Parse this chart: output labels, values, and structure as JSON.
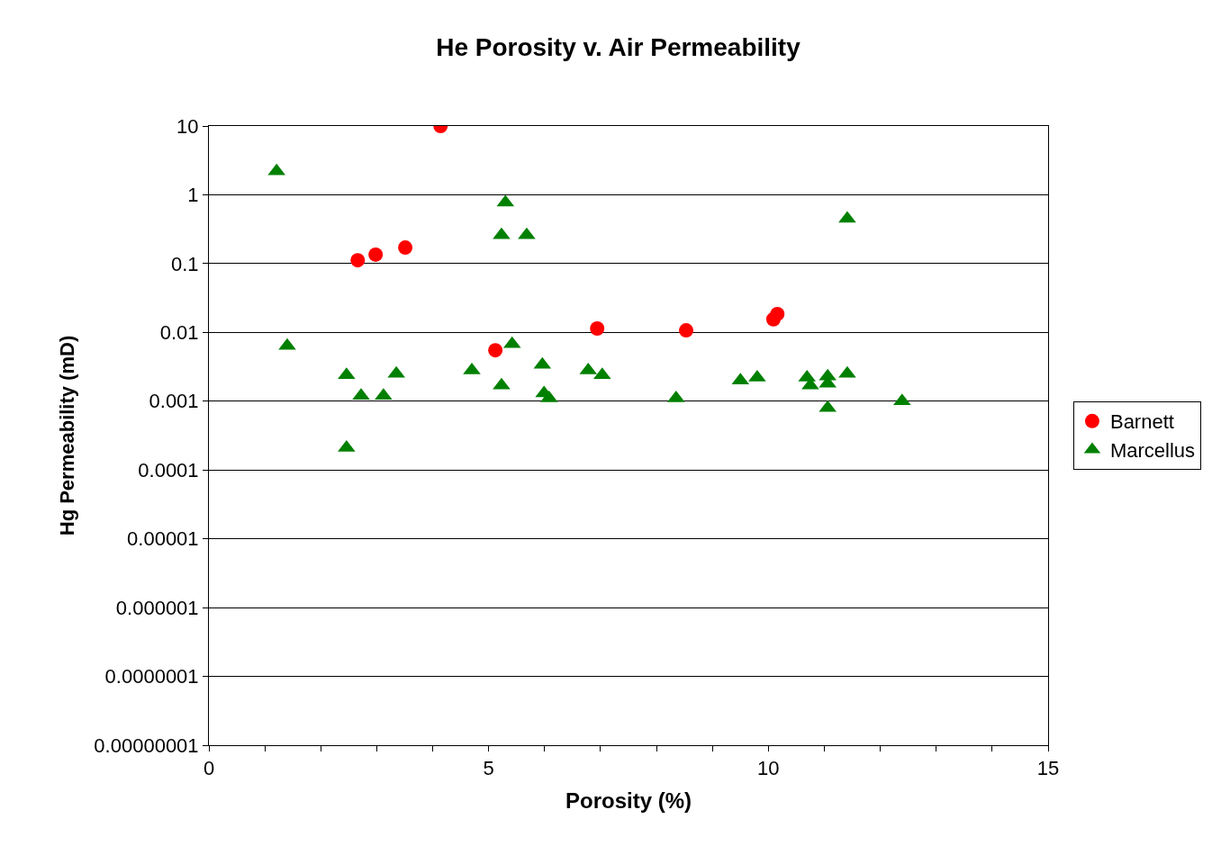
{
  "chart_data": {
    "type": "scatter",
    "title": "He Porosity v. Air Permeability",
    "xlabel": "Porosity (%)",
    "ylabel": "Hg Permeability (mD)",
    "log": "y",
    "grid": "y",
    "legend": "right",
    "xlim": [
      0,
      15
    ],
    "xticks": [
      0,
      {
        "value": 1,
        "label": null
      },
      {
        "value": 2,
        "label": null
      },
      {
        "value": 3,
        "label": null
      },
      {
        "value": 4,
        "label": null
      },
      5,
      {
        "value": 6,
        "label": null
      },
      {
        "value": 7,
        "label": null
      },
      {
        "value": 8,
        "label": null
      },
      {
        "value": 9,
        "label": null
      },
      10,
      {
        "value": 11,
        "label": null
      },
      {
        "value": 12,
        "label": null
      },
      {
        "value": 13,
        "label": null
      },
      {
        "value": 14,
        "label": null
      },
      15
    ],
    "ylim": [
      1e-08,
      10
    ],
    "yticks": [
      {
        "value": 1e-08,
        "label": "0.00000001"
      },
      {
        "value": 1e-07,
        "label": "0.0000001"
      },
      {
        "value": 1e-06,
        "label": "0.000001"
      },
      {
        "value": 1e-05,
        "label": "0.00001"
      },
      0.0001,
      0.001,
      0.01,
      0.1,
      1,
      10
    ],
    "series": [
      {
        "name": "Barnett",
        "color": "#ff0000",
        "marker": "circle",
        "x": [
          2.66,
          2.98,
          3.51,
          4.14,
          5.12,
          6.94,
          8.53,
          10.09,
          10.16
        ],
        "values": [
          0.112,
          0.135,
          0.171,
          10,
          0.0055,
          0.0114,
          0.0107,
          0.0155,
          0.0185
        ]
      },
      {
        "name": "Marcellus",
        "color": "#008000",
        "marker": "triangle",
        "x": [
          1.21,
          1.4,
          2.46,
          2.46,
          2.72,
          3.12,
          3.35,
          4.7,
          5.23,
          5.23,
          5.3,
          5.42,
          5.68,
          5.96,
          5.99,
          6.08,
          6.78,
          7.03,
          8.35,
          9.5,
          9.8,
          10.69,
          10.75,
          11.06,
          11.06,
          11.06,
          11.41,
          11.41,
          12.39
        ],
        "values": [
          2.2,
          0.0064,
          0.0024,
          0.00021,
          0.0012,
          0.0012,
          0.0025,
          0.0028,
          0.0017,
          0.26,
          0.77,
          0.0068,
          0.26,
          0.0034,
          0.0013,
          0.0011,
          0.0028,
          0.0024,
          0.0011,
          0.002,
          0.0022,
          0.0022,
          0.0017,
          0.0023,
          0.0018,
          0.0008,
          0.0025,
          0.45,
          0.001
        ]
      }
    ]
  }
}
